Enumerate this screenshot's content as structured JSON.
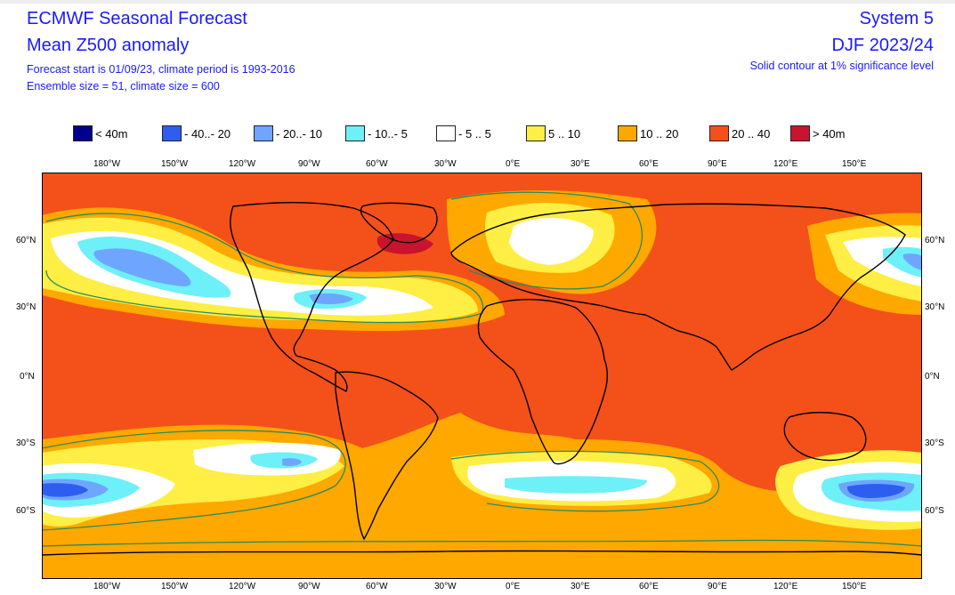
{
  "header": {
    "title": "ECMWF Seasonal Forecast",
    "subtitle": "Mean Z500 anomaly",
    "note_line1": "Forecast start is 01/09/23, climate period is 1993-2016",
    "note_line2": "Ensemble size = 51, climate size = 600",
    "system": "System 5",
    "period": "DJF 2023/24",
    "significance": "Solid contour at 1% significance level"
  },
  "legend": [
    {
      "label": "< 40m",
      "color": "#00008c"
    },
    {
      "label": "- 40..- 20",
      "color": "#2e5ef0"
    },
    {
      "label": "- 20..- 10",
      "color": "#6ea6ff"
    },
    {
      "label": "- 10..- 5",
      "color": "#6ef0f8"
    },
    {
      "label": "- 5 .. 5",
      "color": "#ffffff"
    },
    {
      "label": "5 .. 10",
      "color": "#ffee44"
    },
    {
      "label": "10 .. 20",
      "color": "#ffa800"
    },
    {
      "label": "20 .. 40",
      "color": "#f4501a"
    },
    {
      "label": "> 40m",
      "color": "#c8142e"
    }
  ],
  "axes": {
    "lon_ticks": [
      "180°W",
      "150°W",
      "120°W",
      "90°W",
      "60°W",
      "30°W",
      "0°E",
      "30°E",
      "60°E",
      "90°E",
      "120°E",
      "150°E"
    ],
    "lat_ticks": [
      "60°N",
      "30°N",
      "0°N",
      "30°S",
      "60°S"
    ]
  },
  "colors": {
    "title_text": "#1a1aff",
    "significance_contour": "#2a8c5a",
    "coastline": "#000000"
  }
}
